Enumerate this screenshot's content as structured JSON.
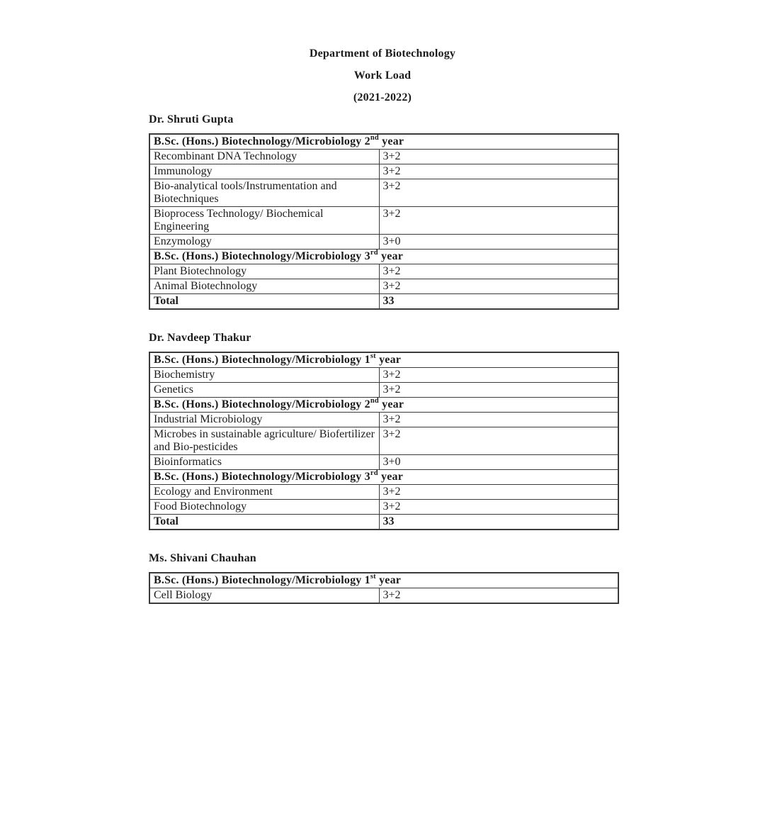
{
  "header": {
    "title": "Department of Biotechnology",
    "subtitle": "Work Load",
    "session": "(2021-2022)"
  },
  "sections": [
    {
      "teacher": "Dr. Shruti Gupta",
      "rows": [
        {
          "type": "year",
          "pre": "B.Sc. (Hons.) Biotechnology/Microbiology 2",
          "sup": "nd",
          "post": " year"
        },
        {
          "type": "course",
          "name": "Recombinant DNA Technology",
          "load": "3+2"
        },
        {
          "type": "course",
          "name": "Immunology",
          "load": "3+2"
        },
        {
          "type": "course",
          "name": "Bio-analytical tools/Instrumentation and Biotechniques",
          "load": "3+2"
        },
        {
          "type": "course",
          "name": "Bioprocess Technology/ Biochemical Engineering",
          "load": "3+2"
        },
        {
          "type": "course",
          "name": "Enzymology",
          "load": "3+0"
        },
        {
          "type": "year",
          "pre": "B.Sc. (Hons.) Biotechnology/Microbiology 3",
          "sup": "rd",
          "post": " year"
        },
        {
          "type": "course",
          "name": "Plant Biotechnology",
          "load": "3+2"
        },
        {
          "type": "course",
          "name": "Animal Biotechnology",
          "load": "3+2"
        },
        {
          "type": "total",
          "label": "Total",
          "value": "33"
        }
      ]
    },
    {
      "teacher": "Dr. Navdeep Thakur",
      "rows": [
        {
          "type": "year",
          "pre": "B.Sc. (Hons.) Biotechnology/Microbiology 1",
          "sup": "st",
          "post": " year"
        },
        {
          "type": "course",
          "name": "Biochemistry",
          "load": "3+2"
        },
        {
          "type": "course",
          "name": "Genetics",
          "load": "3+2"
        },
        {
          "type": "year",
          "pre": "B.Sc. (Hons.) Biotechnology/Microbiology 2",
          "sup": "nd",
          "post": " year"
        },
        {
          "type": "course",
          "name": "Industrial Microbiology",
          "load": "3+2"
        },
        {
          "type": "course",
          "name": "Microbes in sustainable agriculture/ Biofertilizer and Bio-pesticides",
          "load": "3+2"
        },
        {
          "type": "course",
          "name": "Bioinformatics",
          "load": "3+0"
        },
        {
          "type": "year",
          "pre": "B.Sc. (Hons.) Biotechnology/Microbiology 3",
          "sup": "rd",
          "post": " year"
        },
        {
          "type": "course",
          "name": "Ecology and Environment",
          "load": "3+2"
        },
        {
          "type": "course",
          "name": "Food Biotechnology",
          "load": "3+2"
        },
        {
          "type": "total",
          "label": "Total",
          "value": "33"
        }
      ]
    },
    {
      "teacher": "Ms. Shivani Chauhan",
      "rows": [
        {
          "type": "year",
          "pre": "B.Sc. (Hons.) Biotechnology/Microbiology 1",
          "sup": "st",
          "post": " year"
        },
        {
          "type": "course",
          "name": "Cell Biology",
          "load": "3+2"
        }
      ]
    }
  ]
}
